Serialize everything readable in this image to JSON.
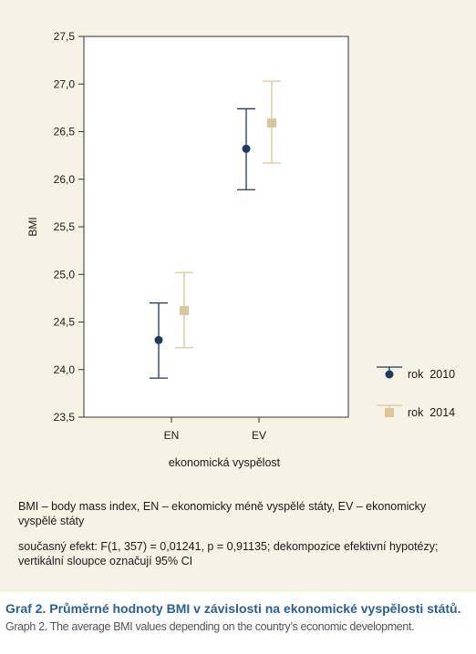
{
  "chart_data": {
    "type": "scatter",
    "ylabel": "BMI",
    "xlabel": "ekonomická vyspělost",
    "categories": [
      "EN",
      "EV"
    ],
    "ylim": [
      23.5,
      27.5
    ],
    "yticks": [
      "23,5",
      "24,0",
      "24,5",
      "25,0",
      "25,5",
      "26,0",
      "26,5",
      "27,0",
      "27,5"
    ],
    "ytick_values": [
      23.5,
      24.0,
      24.5,
      25.0,
      25.5,
      26.0,
      26.5,
      27.0,
      27.5
    ],
    "grid": false,
    "legend_position": "right",
    "series": [
      {
        "name": "rok  2010",
        "marker": "circle",
        "color": "#1f3a5a",
        "values": [
          24.31,
          26.32
        ],
        "ci_low": [
          23.91,
          25.89
        ],
        "ci_high": [
          24.7,
          26.74
        ]
      },
      {
        "name": "rok  2014",
        "marker": "square",
        "color": "#d9c79a",
        "values": [
          24.62,
          26.59
        ],
        "ci_low": [
          24.23,
          26.17
        ],
        "ci_high": [
          25.02,
          27.03
        ]
      }
    ]
  },
  "notes": {
    "line1": "BMI – body mass index, EN – ekonomicky méně vyspělé státy, EV – ekonomicky vyspělé státy",
    "line2": "současný efekt: F(1, 357) = 0,01241, p = 0,91135; dekompozice efektivní hypotézy; vertikální sloupce označují 95% CI"
  },
  "caption": {
    "cz": "Graf 2. Průměrné hodnoty BMI v závislosti na ekonomické vyspělosti států.",
    "en": "Graph 2. The average BMI values depending on the country’s economic development."
  }
}
